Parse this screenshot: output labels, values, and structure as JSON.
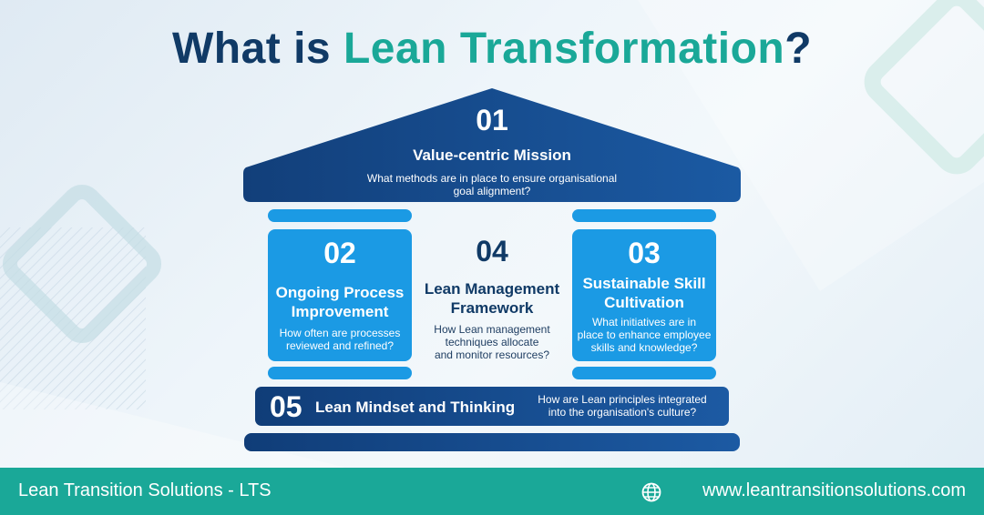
{
  "title": {
    "part1": "What is ",
    "part2": "Lean Transformation",
    "part3": "?"
  },
  "roof": {
    "num": "01",
    "heading": "Value-centric Mission",
    "desc_line1": "What methods are in place to ensure organisational",
    "desc_line2": "goal alignment?"
  },
  "left_pillar": {
    "num": "02",
    "heading_line1": "Ongoing Process",
    "heading_line2": "Improvement",
    "desc_line1": "How often are processes",
    "desc_line2": "reviewed and refined?"
  },
  "middle": {
    "num": "04",
    "heading_line1": "Lean Management",
    "heading_line2": "Framework",
    "desc_line1": "How Lean management",
    "desc_line2": "techniques allocate",
    "desc_line3": "and monitor resources?"
  },
  "right_pillar": {
    "num": "03",
    "heading_line1": "Sustainable Skill",
    "heading_line2": "Cultivation",
    "desc_line1": "What initiatives are in",
    "desc_line2": "place to enhance employee",
    "desc_line3": "skills and knowledge?"
  },
  "base": {
    "num": "05",
    "heading": "Lean Mindset and Thinking",
    "desc_line1": "How are Lean principles integrated",
    "desc_line2": "into the organisation's culture?"
  },
  "footer": {
    "company": "Lean Transition Solutions - LTS",
    "website": "www.leantransitionsolutions.com"
  },
  "colors": {
    "navy": "#103a66",
    "teal": "#1aa898",
    "pillar_blue": "#1b9ae4",
    "roof_blue": "#154b8c"
  }
}
